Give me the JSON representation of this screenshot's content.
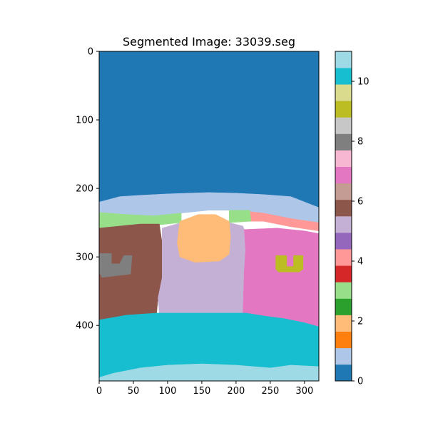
{
  "chart_data": {
    "type": "heatmap",
    "title": "Segmented Image: 33039.seg",
    "xlabel": "",
    "ylabel": "",
    "xlim": [
      0,
      321
    ],
    "ylim": [
      481,
      0
    ],
    "x_ticks": [
      0,
      50,
      100,
      150,
      200,
      250,
      300
    ],
    "y_ticks": [
      0,
      100,
      200,
      300,
      400
    ],
    "colormap": "tab20",
    "colorbar": {
      "range": [
        0,
        11
      ],
      "ticks": [
        0,
        2,
        4,
        6,
        8,
        10
      ],
      "colors": [
        "#1f77b4",
        "#aec7e8",
        "#ff7f0e",
        "#ffbb78",
        "#2ca02c",
        "#98df8a",
        "#d62728",
        "#ff9896",
        "#9467bd",
        "#c5b0d5",
        "#8c564b",
        "#c49c94",
        "#e377c2",
        "#f7b6d2",
        "#7f7f7f",
        "#c7c7c7",
        "#bcbd22",
        "#dbdb8d",
        "#17becf",
        "#9edae5"
      ]
    },
    "segments": [
      {
        "label": 0,
        "color": "#1f77b4",
        "region": "sky",
        "polygon": [
          [
            0,
            0
          ],
          [
            321,
            0
          ],
          [
            321,
            228
          ],
          [
            0,
            220
          ]
        ]
      },
      {
        "label": 1,
        "color": "#aec7e8",
        "region": "distant hills",
        "polygon": [
          [
            0,
            220
          ],
          [
            30,
            212
          ],
          [
            60,
            210
          ],
          [
            100,
            208
          ],
          [
            130,
            207
          ],
          [
            160,
            206
          ],
          [
            200,
            207
          ],
          [
            240,
            209
          ],
          [
            280,
            212
          ],
          [
            321,
            228
          ],
          [
            321,
            250
          ],
          [
            280,
            244
          ],
          [
            240,
            236
          ],
          [
            200,
            232
          ],
          [
            160,
            232
          ],
          [
            120,
            236
          ],
          [
            80,
            240
          ],
          [
            40,
            238
          ],
          [
            0,
            235
          ]
        ]
      },
      {
        "label": 3,
        "color": "#98df8a",
        "region": "green strip",
        "polygon": [
          [
            0,
            235
          ],
          [
            40,
            238
          ],
          [
            80,
            240
          ],
          [
            120,
            236
          ],
          [
            120,
            250
          ],
          [
            60,
            256
          ],
          [
            0,
            258
          ]
        ]
      },
      {
        "label": 5,
        "color": "#ff9896",
        "region": "pink strip",
        "polygon": [
          [
            200,
            232
          ],
          [
            240,
            236
          ],
          [
            280,
            244
          ],
          [
            321,
            250
          ],
          [
            321,
            262
          ],
          [
            280,
            256
          ],
          [
            240,
            248
          ],
          [
            200,
            248
          ]
        ]
      },
      {
        "label": 3,
        "color": "#98df8a",
        "region": "green strip right",
        "polygon": [
          [
            190,
            232
          ],
          [
            220,
            232
          ],
          [
            222,
            248
          ],
          [
            190,
            250
          ]
        ]
      },
      {
        "label": 6,
        "color": "#8c564b",
        "region": "left building",
        "polygon": [
          [
            0,
            258
          ],
          [
            60,
            252
          ],
          [
            88,
            252
          ],
          [
            92,
            280
          ],
          [
            92,
            330
          ],
          [
            86,
            360
          ],
          [
            84,
            382
          ],
          [
            40,
            385
          ],
          [
            0,
            392
          ]
        ]
      },
      {
        "label": 5,
        "color": "#c5b0d5",
        "region": "center wall",
        "polygon": [
          [
            92,
            258
          ],
          [
            120,
            250
          ],
          [
            150,
            248
          ],
          [
            190,
            250
          ],
          [
            210,
            255
          ],
          [
            215,
            268
          ],
          [
            212,
            320
          ],
          [
            210,
            372
          ],
          [
            215,
            382
          ],
          [
            180,
            382
          ],
          [
            130,
            382
          ],
          [
            88,
            382
          ],
          [
            86,
            360
          ],
          [
            92,
            330
          ],
          [
            92,
            290
          ]
        ]
      },
      {
        "label": 2,
        "color": "#ffbb78",
        "region": "arched opening",
        "polygon": [
          [
            118,
            248
          ],
          [
            145,
            238
          ],
          [
            170,
            238
          ],
          [
            190,
            248
          ],
          [
            192,
            270
          ],
          [
            190,
            296
          ],
          [
            176,
            306
          ],
          [
            140,
            308
          ],
          [
            118,
            300
          ],
          [
            114,
            280
          ],
          [
            116,
            262
          ]
        ]
      },
      {
        "label": 7,
        "color": "#e377c2",
        "region": "right building",
        "polygon": [
          [
            212,
            260
          ],
          [
            260,
            258
          ],
          [
            300,
            262
          ],
          [
            321,
            266
          ],
          [
            321,
            402
          ],
          [
            300,
            396
          ],
          [
            270,
            390
          ],
          [
            240,
            386
          ],
          [
            210,
            382
          ],
          [
            212,
            320
          ],
          [
            214,
            290
          ]
        ]
      },
      {
        "label": 8,
        "color": "#7f7f7f",
        "region": "left window",
        "polygon": [
          [
            0,
            295
          ],
          [
            18,
            295
          ],
          [
            18,
            310
          ],
          [
            30,
            310
          ],
          [
            36,
            298
          ],
          [
            48,
            298
          ],
          [
            46,
            325
          ],
          [
            4,
            330
          ],
          [
            0,
            322
          ]
        ]
      },
      {
        "label": 9,
        "color": "#bcbd22",
        "region": "right window",
        "polygon": [
          [
            258,
            298
          ],
          [
            274,
            298
          ],
          [
            274,
            314
          ],
          [
            284,
            314
          ],
          [
            284,
            298
          ],
          [
            298,
            298
          ],
          [
            298,
            318
          ],
          [
            292,
            322
          ],
          [
            262,
            322
          ],
          [
            258,
            318
          ]
        ]
      },
      {
        "label": 10,
        "color": "#17becf",
        "region": "foreground",
        "polygon": [
          [
            0,
            392
          ],
          [
            40,
            385
          ],
          [
            84,
            382
          ],
          [
            130,
            382
          ],
          [
            180,
            382
          ],
          [
            215,
            382
          ],
          [
            240,
            386
          ],
          [
            270,
            390
          ],
          [
            300,
            396
          ],
          [
            321,
            402
          ],
          [
            321,
            460
          ],
          [
            280,
            458
          ],
          [
            250,
            462
          ],
          [
            200,
            458
          ],
          [
            150,
            456
          ],
          [
            100,
            458
          ],
          [
            60,
            462
          ],
          [
            20,
            470
          ],
          [
            0,
            476
          ]
        ]
      },
      {
        "label": 11,
        "color": "#9edae5",
        "region": "bottom strip",
        "polygon": [
          [
            0,
            476
          ],
          [
            20,
            470
          ],
          [
            60,
            462
          ],
          [
            100,
            458
          ],
          [
            150,
            456
          ],
          [
            200,
            458
          ],
          [
            250,
            462
          ],
          [
            280,
            458
          ],
          [
            321,
            460
          ],
          [
            321,
            481
          ],
          [
            0,
            481
          ]
        ]
      }
    ]
  }
}
